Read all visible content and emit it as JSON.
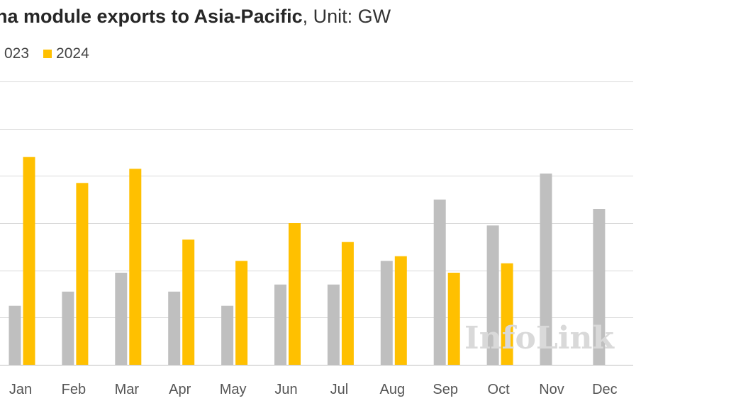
{
  "chart_data": {
    "type": "bar",
    "title": "na module exports to Asia-Pacific",
    "subtitle": ", Unit: GW",
    "categories": [
      "Jan",
      "Feb",
      "Mar",
      "Apr",
      "May",
      "Jun",
      "Jul",
      "Aug",
      "Sep",
      "Oct",
      "Nov",
      "Dec"
    ],
    "series": [
      {
        "name": "023",
        "color": "#bfbfbf",
        "values": [
          2.5,
          3.1,
          3.9,
          3.1,
          2.5,
          3.4,
          3.4,
          4.4,
          7.0,
          5.9,
          8.1,
          6.6
        ]
      },
      {
        "name": "2024",
        "color": "#ffc000",
        "values": [
          8.8,
          7.7,
          8.3,
          5.3,
          4.4,
          6.0,
          5.2,
          4.6,
          3.9,
          4.3,
          null,
          null
        ]
      }
    ],
    "ylim": [
      0,
      12
    ],
    "grid": true,
    "legend_position": "top-left",
    "watermark": "InfoLink"
  }
}
